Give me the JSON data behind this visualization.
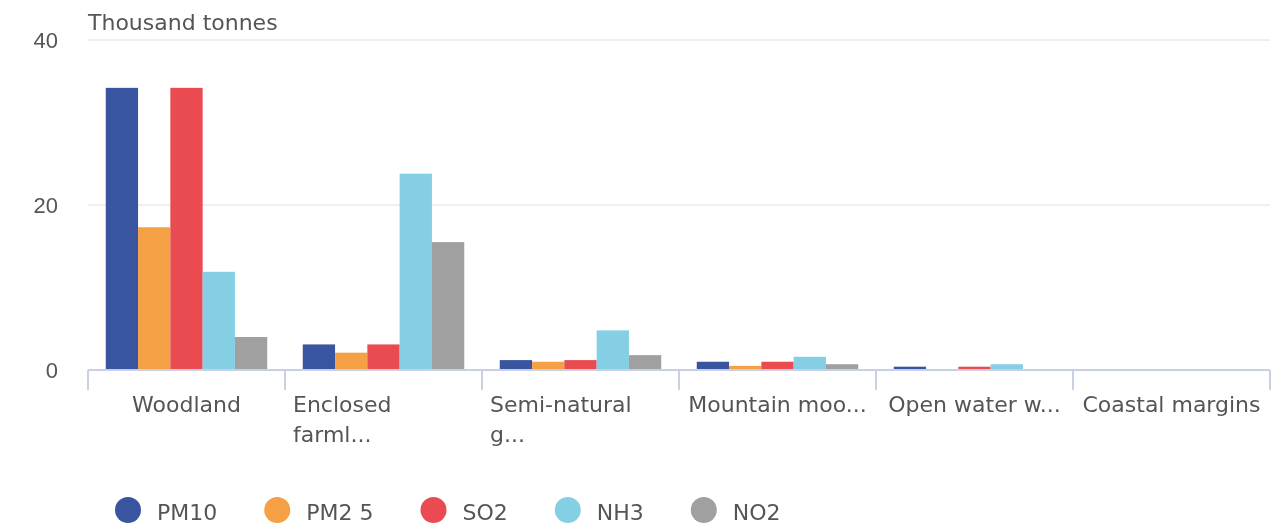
{
  "chart_data": {
    "type": "bar",
    "ylabel": "Thousand tonnes",
    "categories": [
      "Woodland",
      "Enclosed farml...",
      "Semi-natural g...",
      "Mountain moo...",
      "Open water w...",
      "Coastal margins"
    ],
    "series": [
      {
        "name": "PM10",
        "color": "#3a55a0",
        "values": [
          34.2,
          3.1,
          1.2,
          1.0,
          0.4,
          0
        ]
      },
      {
        "name": "PM2 5",
        "color": "#f5a045",
        "values": [
          17.3,
          2.1,
          1.0,
          0.5,
          0,
          0
        ]
      },
      {
        "name": "SO2",
        "color": "#e94b50",
        "values": [
          34.2,
          3.1,
          1.2,
          1.0,
          0.4,
          0
        ]
      },
      {
        "name": "NH3",
        "color": "#85cfe5",
        "values": [
          11.9,
          23.8,
          4.8,
          1.6,
          0.7,
          0
        ]
      },
      {
        "name": "NO2",
        "color": "#a0a0a0",
        "values": [
          4.0,
          15.5,
          1.8,
          0.7,
          0,
          0
        ]
      }
    ],
    "ylim": [
      0,
      40
    ],
    "yticks": [
      0,
      20,
      40
    ],
    "grid": "y",
    "legend": "bottom"
  }
}
